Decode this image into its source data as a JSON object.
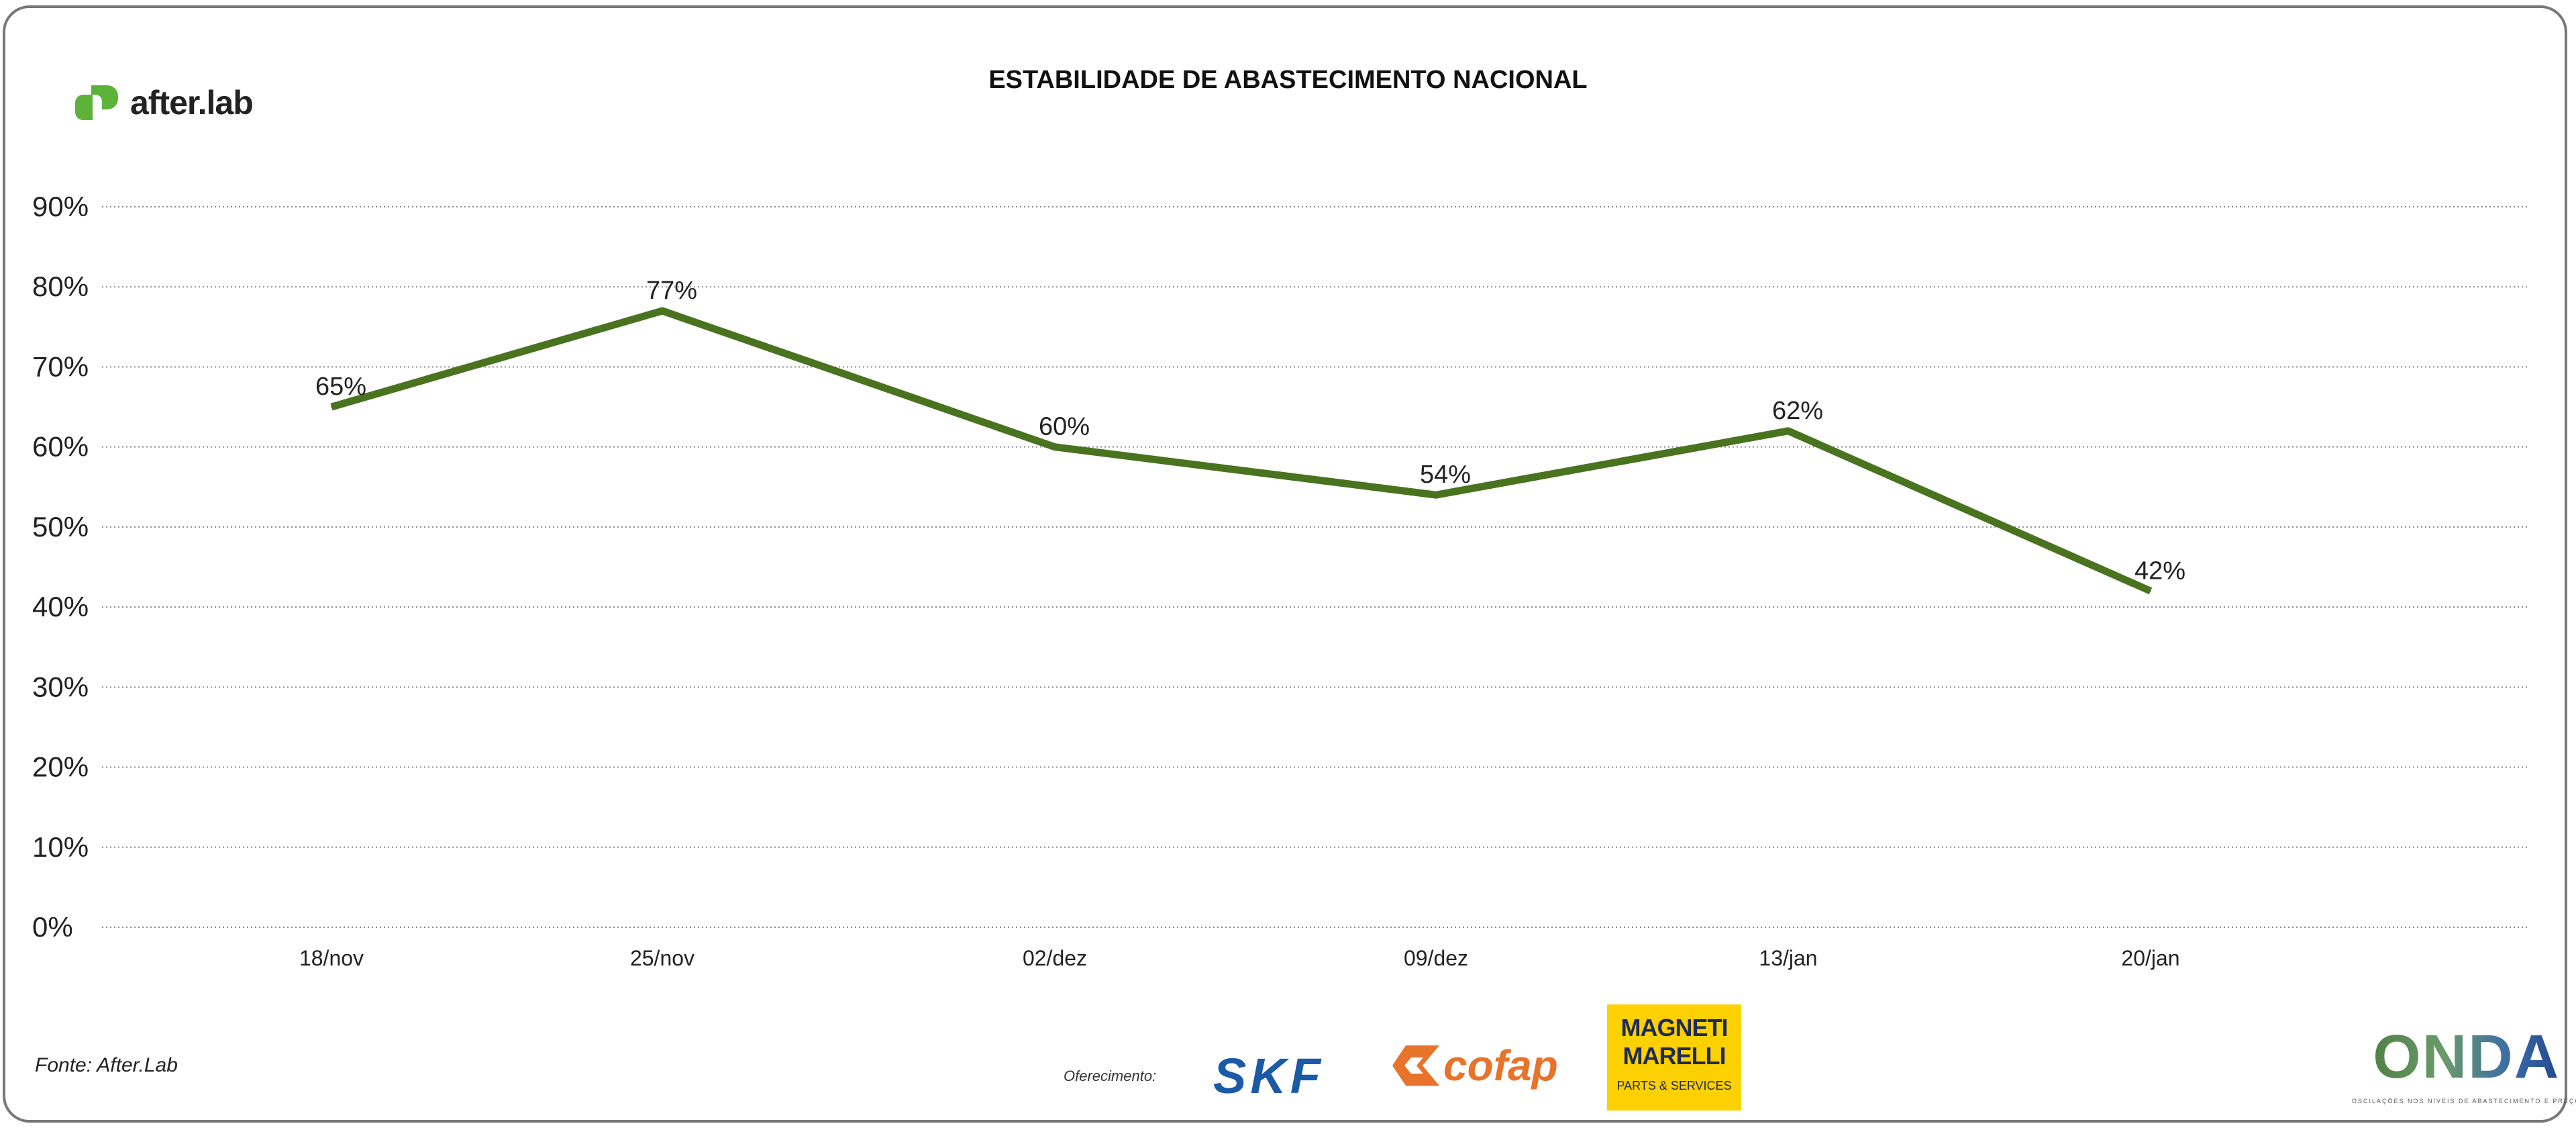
{
  "brand": {
    "name": "after.lab",
    "accent": "#5db33a"
  },
  "footer": {
    "source": "Fonte: After.Lab",
    "sponsor_label": "Oferecimento:",
    "sponsors": [
      "SKF",
      "cofap",
      "MAGNETI MARELLI",
      "PARTS & SERVICES"
    ],
    "onda": {
      "name": "ONDA",
      "tagline": "OSCILAÇÕES NOS NÍVEIS DE ABASTECIMENTO E PREÇO"
    }
  },
  "chart_data": {
    "type": "line",
    "title": "ESTABILIDADE DE ABASTECIMENTO NACIONAL",
    "categories": [
      "18/nov",
      "25/nov",
      "02/dez",
      "09/dez",
      "13/jan",
      "20/jan"
    ],
    "values": [
      65,
      77,
      60,
      54,
      62,
      42
    ],
    "data_labels": [
      "65%",
      "77%",
      "60%",
      "54%",
      "62%",
      "42%"
    ],
    "yticks": [
      "0%",
      "10%",
      "20%",
      "30%",
      "40%",
      "50%",
      "60%",
      "70%",
      "80%",
      "90%"
    ],
    "ylim": [
      0,
      90
    ],
    "grid": "horizontal dotted",
    "line_color": "#4a7320",
    "xlabel": "",
    "ylabel": ""
  }
}
